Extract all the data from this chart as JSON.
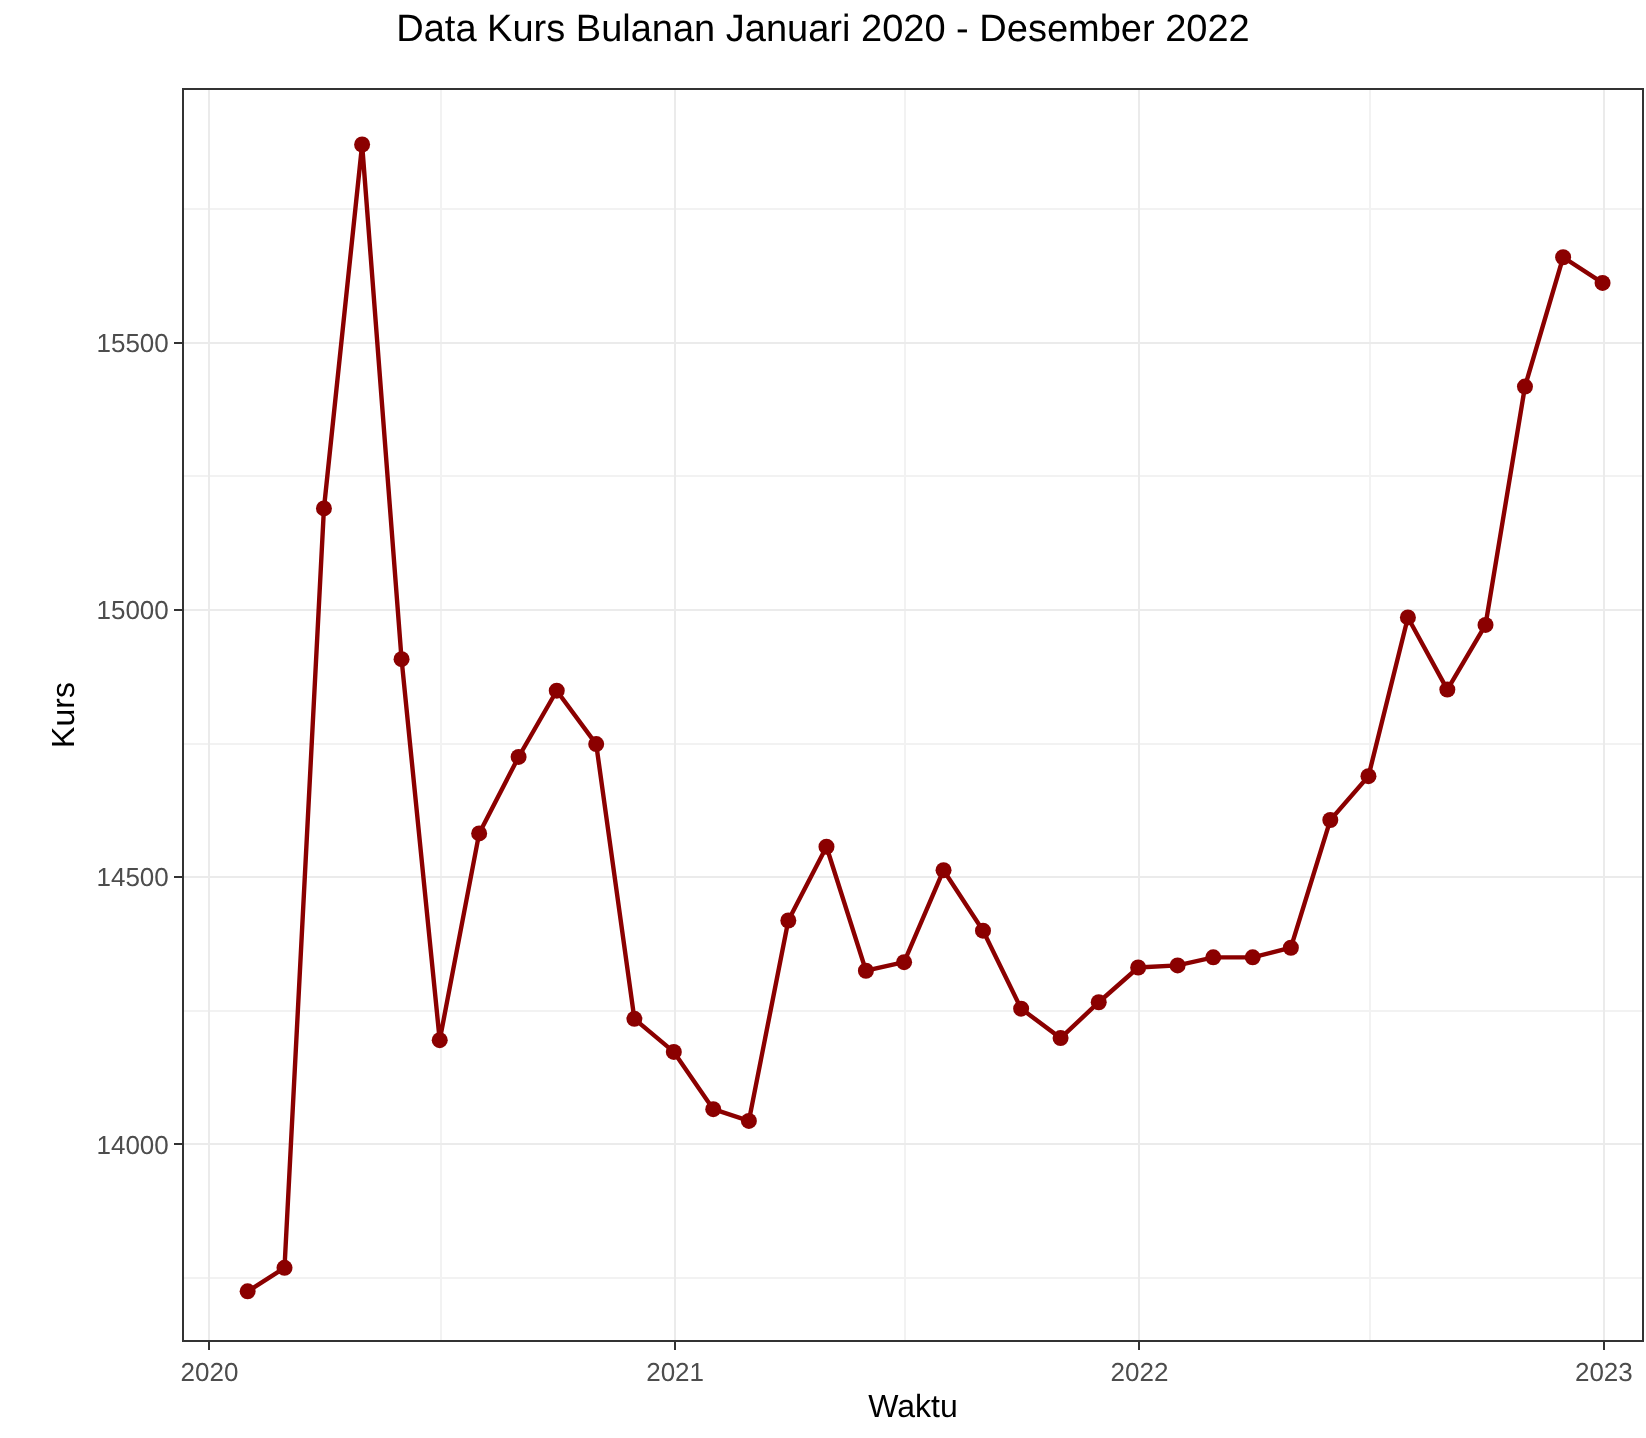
{
  "chart_data": {
    "type": "line",
    "title": "Data Kurs Bulanan Januari 2020 - Desember 2022",
    "xlabel": "Waktu",
    "ylabel": "Kurs",
    "x": [
      "2020-01-31",
      "2020-02-29",
      "2020-03-31",
      "2020-04-30",
      "2020-05-31",
      "2020-06-30",
      "2020-07-31",
      "2020-08-31",
      "2020-09-30",
      "2020-10-31",
      "2020-11-30",
      "2020-12-31",
      "2021-01-31",
      "2021-02-28",
      "2021-03-31",
      "2021-04-30",
      "2021-05-31",
      "2021-06-30",
      "2021-07-31",
      "2021-08-31",
      "2021-09-30",
      "2021-10-31",
      "2021-11-30",
      "2021-12-31",
      "2022-01-31",
      "2022-02-28",
      "2022-03-31",
      "2022-04-30",
      "2022-05-31",
      "2022-06-30",
      "2022-07-31",
      "2022-08-31",
      "2022-09-30",
      "2022-10-31",
      "2022-11-30",
      "2022-12-31"
    ],
    "series": [
      {
        "color": "#8b0000",
        "values": [
          13725,
          13769,
          15190,
          15871,
          14908,
          14195,
          14582,
          14725,
          14849,
          14749,
          14235,
          14173,
          14066,
          14044,
          14419,
          14557,
          14325,
          14341,
          14513,
          14400,
          14254,
          14199,
          14266,
          14331,
          14335,
          14350,
          14350,
          14368,
          14607,
          14689,
          14986,
          14851,
          14972,
          15418,
          15660,
          15612
        ]
      }
    ],
    "xlim": [
      "2019-12-12",
      "2023-01-31"
    ],
    "xticks": [
      {
        "value": "2020-01-01",
        "label": "2020"
      },
      {
        "value": "2021-01-01",
        "label": "2021"
      },
      {
        "value": "2022-01-01",
        "label": "2022"
      },
      {
        "value": "2023-01-01",
        "label": "2023"
      }
    ],
    "ylim": [
      13634,
      15973
    ],
    "yticks": [
      14000,
      14500,
      15000,
      15500
    ],
    "grid": true,
    "marker": "circle",
    "line_style": "solid"
  }
}
